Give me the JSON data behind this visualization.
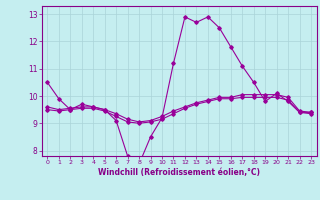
{
  "title": "",
  "xlabel": "Windchill (Refroidissement éolien,°C)",
  "ylabel": "",
  "bg_color": "#c5eef0",
  "grid_color": "#aad4d8",
  "line_color": "#990099",
  "xlim": [
    -0.5,
    23.5
  ],
  "ylim": [
    7.8,
    13.3
  ],
  "yticks": [
    8,
    9,
    10,
    11,
    12,
    13
  ],
  "xticks": [
    0,
    1,
    2,
    3,
    4,
    5,
    6,
    7,
    8,
    9,
    10,
    11,
    12,
    13,
    14,
    15,
    16,
    17,
    18,
    19,
    20,
    21,
    22,
    23
  ],
  "series1": [
    10.5,
    9.9,
    9.5,
    9.7,
    9.6,
    9.5,
    9.1,
    7.8,
    7.5,
    8.5,
    9.2,
    11.2,
    12.9,
    12.7,
    12.9,
    12.5,
    11.8,
    11.1,
    10.5,
    9.8,
    10.1,
    9.8,
    9.4,
    9.4
  ],
  "series2": [
    9.6,
    9.5,
    9.55,
    9.6,
    9.6,
    9.5,
    9.35,
    9.15,
    9.05,
    9.1,
    9.25,
    9.45,
    9.6,
    9.75,
    9.85,
    9.95,
    9.95,
    10.05,
    10.05,
    10.05,
    10.05,
    9.95,
    9.45,
    9.4
  ],
  "series3": [
    9.5,
    9.45,
    9.5,
    9.55,
    9.55,
    9.45,
    9.25,
    9.05,
    9.0,
    9.05,
    9.15,
    9.35,
    9.55,
    9.7,
    9.8,
    9.9,
    9.9,
    9.95,
    9.95,
    9.95,
    9.95,
    9.85,
    9.4,
    9.35
  ]
}
